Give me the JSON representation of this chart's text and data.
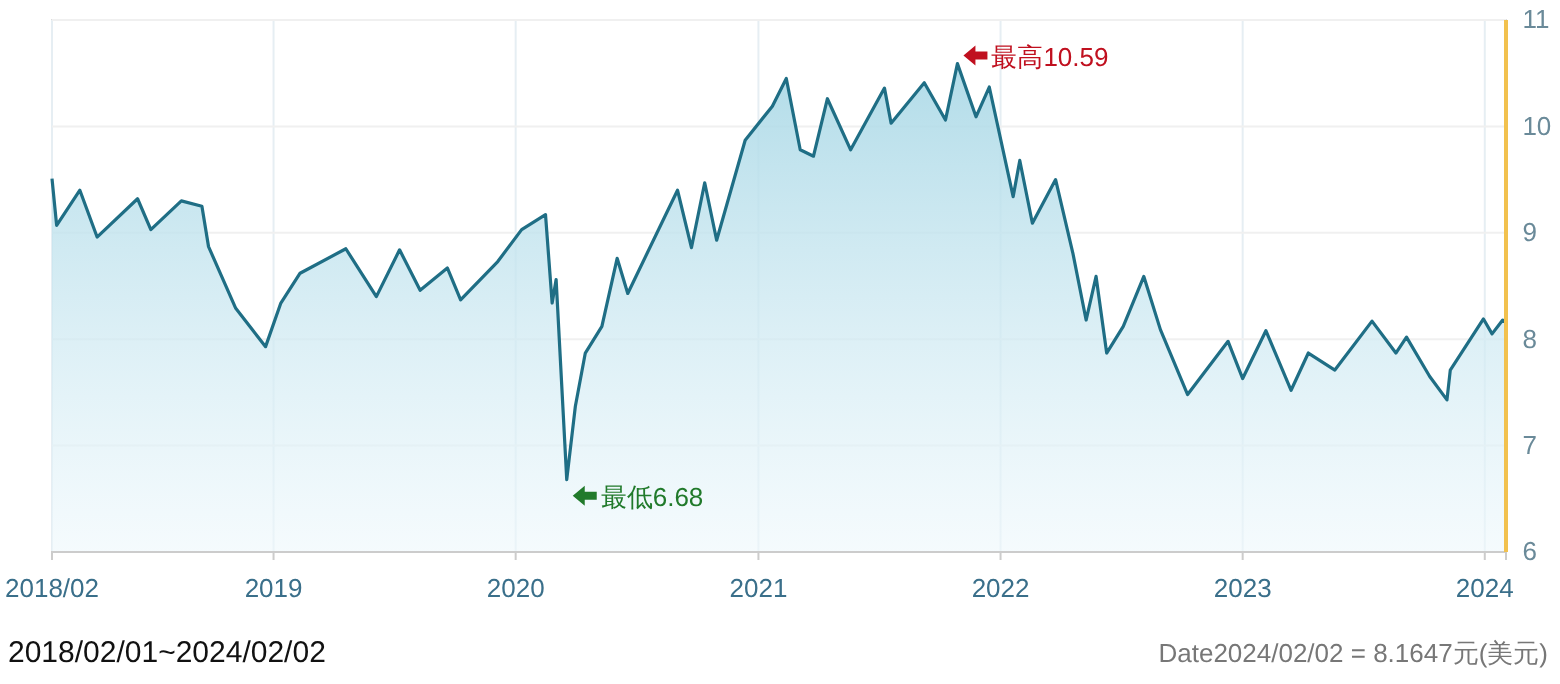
{
  "chart_data": {
    "type": "area",
    "x": [
      "2018-02-01",
      "2018-02-08",
      "2018-03-15",
      "2018-04-10",
      "2018-06-10",
      "2018-06-30",
      "2018-08-15",
      "2018-09-15",
      "2018-09-25",
      "2018-11-05",
      "2018-12-20",
      "2019-01-12",
      "2019-02-10",
      "2019-04-20",
      "2019-06-05",
      "2019-07-10",
      "2019-08-10",
      "2019-09-20",
      "2019-10-10",
      "2019-12-05",
      "2020-01-10",
      "2020-02-15",
      "2020-02-25",
      "2020-03-02",
      "2020-03-18",
      "2020-03-31",
      "2020-04-15",
      "2020-05-10",
      "2020-06-02",
      "2020-06-18",
      "2020-09-01",
      "2020-09-22",
      "2020-10-12",
      "2020-10-30",
      "2020-12-12",
      "2021-01-22",
      "2021-02-12",
      "2021-03-05",
      "2021-03-25",
      "2021-04-15",
      "2021-05-20",
      "2021-07-10",
      "2021-07-20",
      "2021-09-08",
      "2021-10-10",
      "2021-10-28",
      "2021-11-25",
      "2021-12-15",
      "2022-01-20",
      "2022-01-30",
      "2022-02-18",
      "2022-03-25",
      "2022-04-20",
      "2022-05-10",
      "2022-05-25",
      "2022-06-10",
      "2022-07-05",
      "2022-08-05",
      "2022-08-30",
      "2022-10-10",
      "2022-12-10",
      "2023-01-01",
      "2023-02-05",
      "2023-03-15",
      "2023-04-10",
      "2023-05-20",
      "2023-07-15",
      "2023-08-20",
      "2023-09-05",
      "2023-10-10",
      "2023-11-05",
      "2023-11-10",
      "2023-12-30",
      "2024-01-12",
      "2024-01-28",
      "2024-02-02"
    ],
    "series": [
      {
        "color": "#1f6e85",
        "values": [
          9.51,
          9.07,
          9.4,
          8.96,
          9.32,
          9.03,
          9.3,
          9.25,
          8.87,
          8.29,
          7.93,
          8.34,
          8.62,
          8.85,
          8.4,
          8.84,
          8.46,
          8.67,
          8.37,
          8.73,
          9.03,
          9.17,
          8.34,
          8.56,
          6.68,
          7.37,
          7.87,
          8.12,
          8.76,
          8.43,
          9.4,
          8.86,
          9.47,
          8.93,
          9.87,
          10.19,
          10.45,
          9.78,
          9.72,
          10.26,
          9.78,
          10.36,
          10.03,
          10.41,
          10.06,
          10.59,
          10.09,
          10.37,
          9.34,
          9.68,
          9.09,
          9.5,
          8.81,
          8.18,
          8.59,
          7.87,
          8.12,
          8.59,
          8.09,
          7.48,
          7.98,
          7.63,
          8.08,
          7.52,
          7.87,
          7.71,
          8.17,
          7.87,
          8.02,
          7.65,
          7.43,
          7.71,
          8.19,
          8.05,
          8.18,
          8.16
        ]
      }
    ],
    "xlim": [
      "2018-02-01",
      "2024-02-02"
    ],
    "xticks": [
      {
        "value": "2018-02-01",
        "label": "2018/02"
      },
      {
        "value": "2019-01-01",
        "label": "2019"
      },
      {
        "value": "2020-01-01",
        "label": "2020"
      },
      {
        "value": "2021-01-01",
        "label": "2021"
      },
      {
        "value": "2022-01-01",
        "label": "2022"
      },
      {
        "value": "2023-01-01",
        "label": "2023"
      },
      {
        "value": "2024-01-01",
        "label": "2024"
      }
    ],
    "ylim": [
      6,
      11
    ],
    "yticks": [
      6,
      7,
      8,
      9,
      10,
      11
    ],
    "grid": true,
    "annotations": [
      {
        "text": "最低6.68",
        "x": "2020-03-18",
        "y": 6.68
      },
      {
        "text": "最高10.59",
        "x": "2021-10-28",
        "y": 10.59
      },
      "2018/02/01~2024/02/02",
      "Date2024/02/02 = 8.1647元(美元)"
    ]
  }
}
